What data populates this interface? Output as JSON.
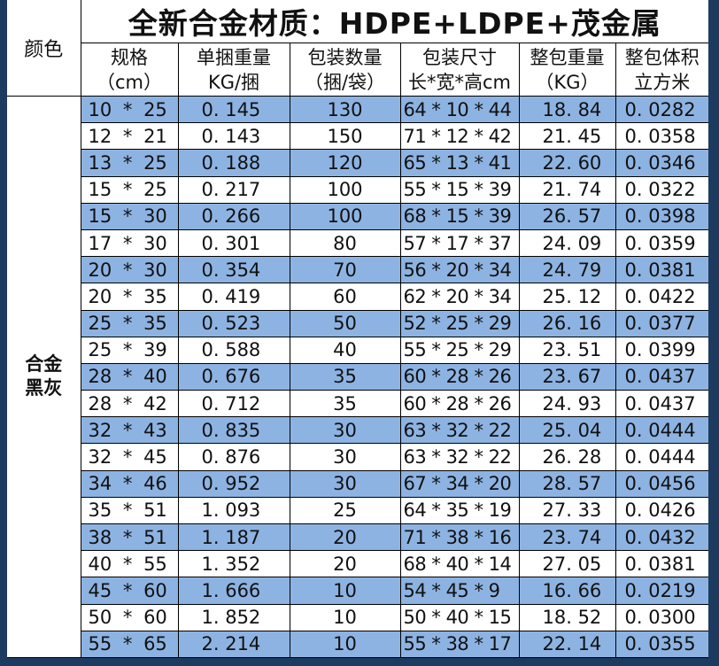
{
  "title": "全新合金材质：HDPE+LDPE+茂金属",
  "headers": {
    "color": "颜色",
    "spec": [
      "规格",
      "（cm）"
    ],
    "unit_weight": [
      "单捆重量",
      "KG/捆"
    ],
    "pack_qty": [
      "包装数量",
      "（捆/袋）"
    ],
    "pack_size": [
      "包装尺寸",
      "长*宽*高cm"
    ],
    "pack_weight": [
      "整包重量",
      "（KG）"
    ],
    "pack_volume": [
      "整包体积",
      "立方米"
    ]
  },
  "color_value": [
    "合金",
    "黑灰"
  ],
  "colors": {
    "frame": "#1d3a5f",
    "row_blue": "#8db3e2",
    "row_white": "#ffffff"
  },
  "rows": [
    {
      "spec": "10 * 25",
      "unit_weight": "0. 145",
      "qty": "130",
      "size": "64 * 10 * 44",
      "weight": "18. 84",
      "volume": "0. 0282"
    },
    {
      "spec": "12 * 21",
      "unit_weight": "0. 143",
      "qty": "150",
      "size": "71 * 12 * 42",
      "weight": "21. 45",
      "volume": "0. 0358"
    },
    {
      "spec": "13 * 25",
      "unit_weight": "0. 188",
      "qty": "120",
      "size": "65 * 13 * 41",
      "weight": "22. 60",
      "volume": "0. 0346"
    },
    {
      "spec": "15 * 25",
      "unit_weight": "0. 217",
      "qty": "100",
      "size": "55 * 15 * 39",
      "weight": "21. 74",
      "volume": "0. 0322"
    },
    {
      "spec": "15 * 30",
      "unit_weight": "0. 266",
      "qty": "100",
      "size": "68 * 15 * 39",
      "weight": "26. 57",
      "volume": "0. 0398"
    },
    {
      "spec": "17 * 30",
      "unit_weight": "0. 301",
      "qty": "80",
      "size": "57 * 17 * 37",
      "weight": "24. 09",
      "volume": "0. 0359"
    },
    {
      "spec": "20 * 30",
      "unit_weight": "0. 354",
      "qty": "70",
      "size": "56 * 20 * 34",
      "weight": "24. 79",
      "volume": "0. 0381"
    },
    {
      "spec": "20 * 35",
      "unit_weight": "0. 419",
      "qty": "60",
      "size": "62 * 20 * 34",
      "weight": "25. 12",
      "volume": "0. 0422"
    },
    {
      "spec": "25 * 35",
      "unit_weight": "0. 523",
      "qty": "50",
      "size": "52 * 25 * 29",
      "weight": "26. 16",
      "volume": "0. 0377"
    },
    {
      "spec": "25 * 39",
      "unit_weight": "0. 588",
      "qty": "40",
      "size": "55 * 25 * 29",
      "weight": "23. 51",
      "volume": "0. 0399"
    },
    {
      "spec": "28 * 40",
      "unit_weight": "0. 676",
      "qty": "35",
      "size": "60 * 28 * 26",
      "weight": "23. 67",
      "volume": "0. 0437"
    },
    {
      "spec": "28 * 42",
      "unit_weight": "0. 712",
      "qty": "35",
      "size": "60 * 28 * 26",
      "weight": "24. 93",
      "volume": "0. 0437"
    },
    {
      "spec": "32 * 43",
      "unit_weight": "0. 835",
      "qty": "30",
      "size": "63 * 32 * 22",
      "weight": "25. 04",
      "volume": "0. 0444"
    },
    {
      "spec": "32 * 45",
      "unit_weight": "0. 876",
      "qty": "30",
      "size": "63 * 32 * 22",
      "weight": "26. 28",
      "volume": "0. 0444"
    },
    {
      "spec": "34 * 46",
      "unit_weight": "0. 952",
      "qty": "30",
      "size": "67 * 34 * 20",
      "weight": "28. 57",
      "volume": "0. 0456"
    },
    {
      "spec": "35 * 51",
      "unit_weight": "1. 093",
      "qty": "25",
      "size": "64 * 35 * 19",
      "weight": "27. 33",
      "volume": "0. 0426"
    },
    {
      "spec": "38 * 51",
      "unit_weight": "1. 187",
      "qty": "20",
      "size": "71 * 38 * 16",
      "weight": "23. 74",
      "volume": "0. 0432"
    },
    {
      "spec": "40 * 55",
      "unit_weight": "1. 352",
      "qty": "20",
      "size": "68 * 40 * 14",
      "weight": "27. 05",
      "volume": "0. 0381"
    },
    {
      "spec": "45 * 60",
      "unit_weight": "1. 666",
      "qty": "10",
      "size": "54 * 45 *  9",
      "weight": "16. 66",
      "volume": "0. 0219"
    },
    {
      "spec": "50 * 60",
      "unit_weight": "1. 852",
      "qty": "10",
      "size": "50 * 40 * 15",
      "weight": "18. 52",
      "volume": "0. 0300"
    },
    {
      "spec": "55 * 65",
      "unit_weight": "2. 214",
      "qty": "10",
      "size": "55 * 38 * 17",
      "weight": "22. 14",
      "volume": "0. 0355"
    }
  ]
}
